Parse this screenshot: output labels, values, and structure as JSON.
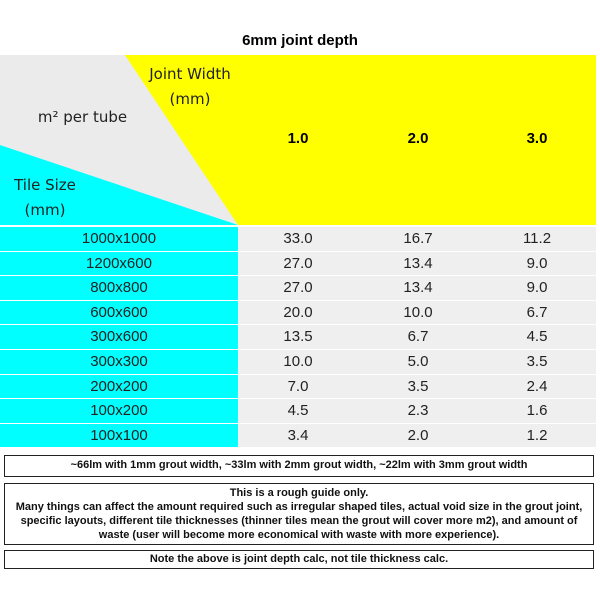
{
  "title": "6mm joint depth",
  "header": {
    "joint_width": [
      "Joint Width",
      "(mm)"
    ],
    "per_tube": "m² per tube",
    "tile_size": [
      "Tile Size",
      "(mm)"
    ],
    "columns": [
      "1.0",
      "2.0",
      "3.0"
    ]
  },
  "table": {
    "rows": [
      [
        "1000x1000",
        "33.0",
        "16.7",
        "11.2"
      ],
      [
        "1200x600",
        "27.0",
        "13.4",
        "9.0"
      ],
      [
        "800x800",
        "27.0",
        "13.4",
        "9.0"
      ],
      [
        "600x600",
        "20.0",
        "10.0",
        "6.7"
      ],
      [
        "300x600",
        "13.5",
        "6.7",
        "4.5"
      ],
      [
        "300x300",
        "10.0",
        "5.0",
        "3.5"
      ],
      [
        "200x200",
        "7.0",
        "3.5",
        "2.4"
      ],
      [
        "100x200",
        "4.5",
        "2.3",
        "1.6"
      ],
      [
        "100x100",
        "3.4",
        "2.0",
        "1.2"
      ]
    ]
  },
  "notes": {
    "coverage": "~66lm with 1mm grout width, ~33lm with 2mm grout width, ~22lm with 3mm grout width",
    "guide_title": "This is a rough guide only.",
    "guide_body": "Many things can affect the amount required such as irregular shaped tiles, actual void size in the grout joint, specific layouts, different tile thicknesses (thinner tiles mean the grout will cover more m2), and amount of waste (user will become more economical with waste with more experience).",
    "depth": "Note the above is joint depth calc, not tile thickness calc."
  }
}
